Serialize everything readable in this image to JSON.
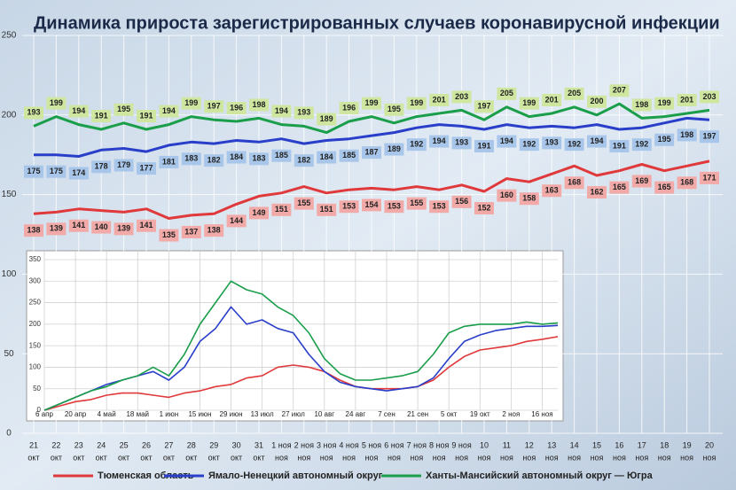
{
  "chart_data": [
    {
      "type": "line",
      "title": "Динамика прироста зарегистрированных случаев коронавирусной инфекции",
      "categories": [
        [
          "21",
          "окт"
        ],
        [
          "22",
          "окт"
        ],
        [
          "23",
          "окт"
        ],
        [
          "24",
          "окт"
        ],
        [
          "25",
          "окт"
        ],
        [
          "26",
          "окт"
        ],
        [
          "27",
          "окт"
        ],
        [
          "28",
          "окт"
        ],
        [
          "29",
          "окт"
        ],
        [
          "30",
          "окт"
        ],
        [
          "31",
          "окт"
        ],
        [
          "1 ноя",
          "ноя"
        ],
        [
          "2 ноя",
          "ноя"
        ],
        [
          "3 ноя",
          "ноя"
        ],
        [
          "4 ноя",
          "ноя"
        ],
        [
          "5 ноя",
          "ноя"
        ],
        [
          "6 ноя",
          "ноя"
        ],
        [
          "7 ноя",
          "ноя"
        ],
        [
          "8 ноя",
          "ноя"
        ],
        [
          "9 ноя",
          "ноя"
        ],
        [
          "10",
          "ноя"
        ],
        [
          "11",
          "ноя"
        ],
        [
          "12",
          "ноя"
        ],
        [
          "13",
          "ноя"
        ],
        [
          "14",
          "ноя"
        ],
        [
          "15",
          "ноя"
        ],
        [
          "16",
          "ноя"
        ],
        [
          "17",
          "ноя"
        ],
        [
          "18",
          "ноя"
        ],
        [
          "19",
          "ноя"
        ],
        [
          "20",
          "ноя"
        ]
      ],
      "series": [
        {
          "name": "Тюменская область",
          "color": "#e0393b",
          "label_color": "#f2aaa8",
          "values": [
            138,
            139,
            141,
            140,
            139,
            141,
            135,
            137,
            138,
            144,
            149,
            151,
            155,
            151,
            153,
            154,
            153,
            155,
            153,
            156,
            152,
            160,
            158,
            163,
            168,
            162,
            165,
            169,
            165,
            168,
            171
          ]
        },
        {
          "name": "Ямало-Ненецкий автономный округ",
          "color": "#2a3fc9",
          "label_color": "#a8c6ea",
          "values": [
            175,
            175,
            174,
            178,
            179,
            177,
            181,
            183,
            182,
            184,
            183,
            185,
            182,
            184,
            185,
            187,
            189,
            192,
            194,
            193,
            191,
            194,
            192,
            193,
            192,
            194,
            191,
            192,
            195,
            198,
            197
          ]
        },
        {
          "name": "Ханты-Мансийский автономный округ — Югра",
          "color": "#1a9e4a",
          "label_color": "#cfe6a0",
          "values": [
            193,
            199,
            194,
            191,
            195,
            191,
            194,
            199,
            197,
            196,
            198,
            194,
            193,
            189,
            196,
            199,
            195,
            199,
            201,
            203,
            197,
            205,
            199,
            201,
            205,
            200,
            207,
            198,
            199,
            201,
            203
          ]
        }
      ],
      "ylim": [
        0,
        250
      ],
      "yticks": [
        0,
        50,
        100,
        150,
        200,
        250
      ],
      "grid": true
    },
    {
      "type": "line",
      "categories": [
        "6 апр",
        null,
        "20 апр",
        null,
        "4 май",
        null,
        "18 май",
        null,
        "1 июн",
        null,
        "15 июн",
        null,
        "29 июн",
        null,
        "13 июл",
        null,
        "27 июл",
        null,
        "10 авг",
        null,
        "24 авг",
        null,
        "7 сен",
        null,
        "21 сен",
        null,
        "5 окт",
        null,
        "19 окт",
        null,
        "2 ноя",
        null,
        "16 ноя",
        null
      ],
      "series": [
        {
          "color": "#e0393b",
          "values": [
            0,
            10,
            20,
            25,
            35,
            40,
            40,
            35,
            30,
            40,
            45,
            55,
            60,
            75,
            80,
            100,
            105,
            100,
            90,
            70,
            55,
            50,
            50,
            50,
            55,
            70,
            100,
            125,
            140,
            145,
            150,
            160,
            165,
            171
          ]
        },
        {
          "color": "#2a3fc9",
          "values": [
            0,
            15,
            30,
            45,
            60,
            70,
            80,
            90,
            70,
            100,
            160,
            190,
            240,
            200,
            210,
            190,
            180,
            130,
            90,
            65,
            55,
            50,
            45,
            50,
            55,
            75,
            120,
            160,
            175,
            185,
            190,
            195,
            195,
            197
          ]
        },
        {
          "color": "#1a9e4a",
          "values": [
            0,
            15,
            30,
            45,
            55,
            70,
            80,
            100,
            80,
            130,
            200,
            250,
            300,
            280,
            270,
            240,
            220,
            180,
            120,
            85,
            70,
            70,
            75,
            80,
            90,
            130,
            180,
            195,
            200,
            200,
            200,
            205,
            200,
            203
          ]
        }
      ],
      "ylim": [
        0,
        350
      ],
      "yticks": [
        0,
        50,
        100,
        150,
        200,
        250,
        300,
        350
      ],
      "grid": true
    }
  ]
}
